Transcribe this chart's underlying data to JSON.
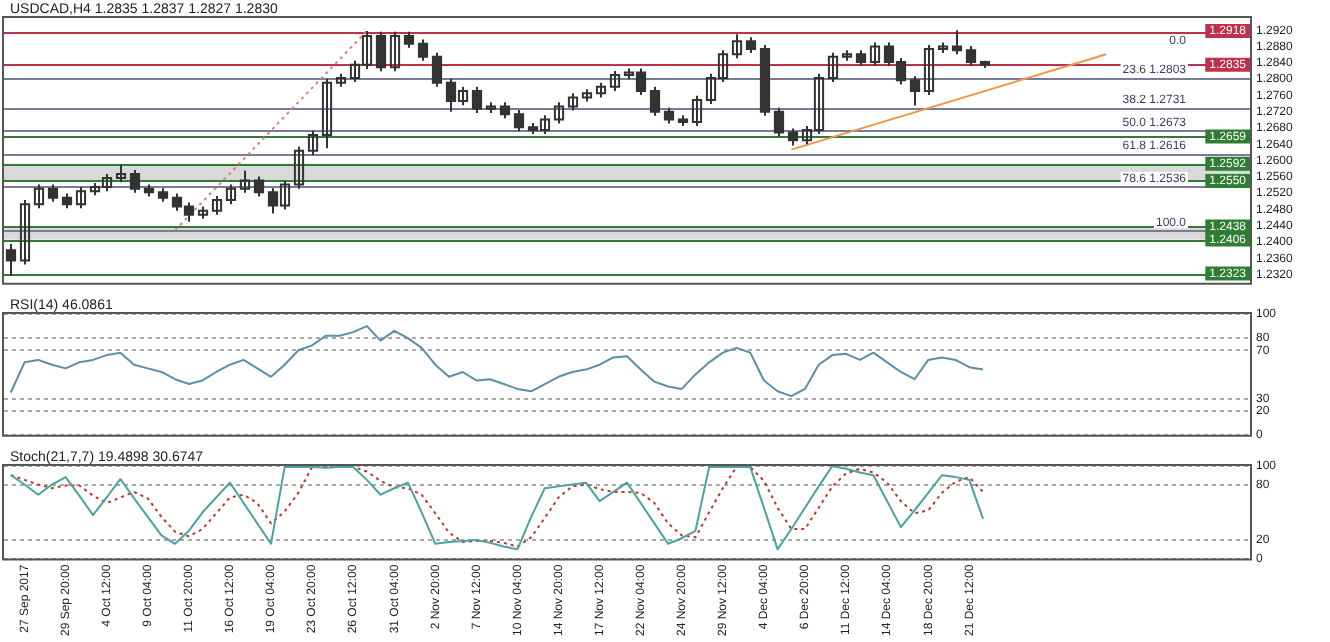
{
  "chart_data": [
    {
      "type": "candlestick",
      "title": "USDCAD,H4 1.2835 1.2837 1.2827 1.2830",
      "color": "#333333",
      "tick_labels": "y",
      "categories": [
        null,
        null,
        null,
        null,
        null,
        null,
        null,
        null,
        null,
        null,
        null,
        null,
        null,
        null,
        null,
        null,
        null,
        null,
        null,
        null,
        null,
        null,
        null,
        null,
        null,
        null,
        null,
        null,
        null,
        null,
        null,
        null,
        null,
        null,
        null,
        null,
        null,
        null,
        null,
        null,
        null,
        null,
        null,
        null,
        null,
        null,
        null,
        null,
        null,
        null,
        null,
        null,
        null,
        null,
        null,
        null,
        null,
        null,
        null,
        null,
        null,
        null,
        null,
        null,
        null,
        null,
        null,
        null,
        null,
        null,
        null,
        null,
        null,
        null,
        null,
        null,
        null,
        null,
        null,
        null,
        null,
        null,
        null,
        null,
        null,
        null,
        null,
        null,
        null,
        null,
        null
      ],
      "ohlc": [
        [
          1.238,
          1.2395,
          1.2317,
          1.2355
        ],
        [
          1.2355,
          1.2503,
          1.2345,
          1.2493
        ],
        [
          1.2493,
          1.2541,
          1.2483,
          1.2531
        ],
        [
          1.2531,
          1.2541,
          1.2499,
          1.2509
        ],
        [
          1.2509,
          1.2519,
          1.2483,
          1.2493
        ],
        [
          1.2493,
          1.2535,
          1.2483,
          1.2525
        ],
        [
          1.2525,
          1.2545,
          1.2515,
          1.2535
        ],
        [
          1.2535,
          1.2567,
          1.2525,
          1.2557
        ],
        [
          1.2557,
          1.259,
          1.2547,
          1.2567
        ],
        [
          1.2567,
          1.2577,
          1.2521,
          1.2531
        ],
        [
          1.2531,
          1.2541,
          1.2512,
          1.2522
        ],
        [
          1.2522,
          1.2532,
          1.2499,
          1.2509
        ],
        [
          1.2509,
          1.2519,
          1.2477,
          1.2487
        ],
        [
          1.2487,
          1.2497,
          1.245,
          1.2467
        ],
        [
          1.2467,
          1.2487,
          1.2457,
          1.2477
        ],
        [
          1.2477,
          1.2513,
          1.2467,
          1.2503
        ],
        [
          1.2503,
          1.2541,
          1.2493,
          1.2531
        ],
        [
          1.2531,
          1.2575,
          1.2521,
          1.2551
        ],
        [
          1.2551,
          1.2561,
          1.2512,
          1.2522
        ],
        [
          1.2522,
          1.2532,
          1.247,
          1.249
        ],
        [
          1.249,
          1.2551,
          1.248,
          1.2541
        ],
        [
          1.2541,
          1.2634,
          1.2531,
          1.2624
        ],
        [
          1.2624,
          1.2673,
          1.2614,
          1.2663
        ],
        [
          1.2663,
          1.2801,
          1.263,
          1.2791
        ],
        [
          1.2791,
          1.2813,
          1.2781,
          1.2803
        ],
        [
          1.2803,
          1.2845,
          1.2793,
          1.2835
        ],
        [
          1.2835,
          1.2918,
          1.2825,
          1.2906
        ],
        [
          1.2906,
          1.2916,
          1.2819,
          1.2829
        ],
        [
          1.2829,
          1.2916,
          1.2819,
          1.2906
        ],
        [
          1.2906,
          1.2916,
          1.2877,
          1.2887
        ],
        [
          1.2887,
          1.2897,
          1.2845,
          1.2855
        ],
        [
          1.2855,
          1.2865,
          1.2781,
          1.2791
        ],
        [
          1.2791,
          1.2801,
          1.272,
          1.2746
        ],
        [
          1.2746,
          1.2781,
          1.2736,
          1.2771
        ],
        [
          1.2771,
          1.2781,
          1.2717,
          1.2727
        ],
        [
          1.2727,
          1.2743,
          1.2717,
          1.2733
        ],
        [
          1.2733,
          1.2743,
          1.2704,
          1.2714
        ],
        [
          1.2714,
          1.2724,
          1.2672,
          1.2682
        ],
        [
          1.2682,
          1.2692,
          1.2665,
          1.2675
        ],
        [
          1.2675,
          1.2711,
          1.2665,
          1.2701
        ],
        [
          1.2701,
          1.2743,
          1.2691,
          1.2733
        ],
        [
          1.2733,
          1.2765,
          1.2723,
          1.2755
        ],
        [
          1.2755,
          1.2775,
          1.2745,
          1.2765
        ],
        [
          1.2765,
          1.2791,
          1.2755,
          1.2781
        ],
        [
          1.2781,
          1.282,
          1.2771,
          1.281
        ],
        [
          1.281,
          1.2826,
          1.28,
          1.2816
        ],
        [
          1.2816,
          1.2826,
          1.2761,
          1.2771
        ],
        [
          1.2771,
          1.2781,
          1.271,
          1.272
        ],
        [
          1.272,
          1.273,
          1.2691,
          1.2701
        ],
        [
          1.2701,
          1.2711,
          1.2685,
          1.2695
        ],
        [
          1.2695,
          1.2759,
          1.2685,
          1.2749
        ],
        [
          1.2749,
          1.2813,
          1.2739,
          1.2803
        ],
        [
          1.2803,
          1.2871,
          1.2793,
          1.2861
        ],
        [
          1.2861,
          1.291,
          1.2851,
          1.2893
        ],
        [
          1.2893,
          1.2903,
          1.2864,
          1.2874
        ],
        [
          1.2874,
          1.2884,
          1.271,
          1.272
        ],
        [
          1.272,
          1.273,
          1.2659,
          1.2669
        ],
        [
          1.2669,
          1.2679,
          1.2637,
          1.265
        ],
        [
          1.265,
          1.2685,
          1.264,
          1.2675
        ],
        [
          1.2675,
          1.2813,
          1.2665,
          1.2803
        ],
        [
          1.2803,
          1.2865,
          1.2793,
          1.2855
        ],
        [
          1.2855,
          1.2871,
          1.2845,
          1.2861
        ],
        [
          1.2861,
          1.2871,
          1.2832,
          1.2842
        ],
        [
          1.2842,
          1.289,
          1.2832,
          1.288
        ],
        [
          1.288,
          1.289,
          1.2832,
          1.2842
        ],
        [
          1.2842,
          1.2852,
          1.2787,
          1.2797
        ],
        [
          1.2797,
          1.2807,
          1.2735,
          1.2771
        ],
        [
          1.2771,
          1.2884,
          1.2761,
          1.2874
        ],
        [
          1.2874,
          1.289,
          1.2864,
          1.288
        ],
        [
          1.288,
          1.292,
          1.2861,
          1.2871
        ],
        [
          1.2871,
          1.2881,
          1.2832,
          1.2842
        ],
        [
          1.2842,
          1.2845,
          1.2827,
          1.2835
        ],
        null,
        null,
        null,
        null,
        null,
        null,
        null,
        null,
        null,
        null,
        null,
        null,
        null,
        null,
        null,
        null,
        null,
        null,
        null
      ],
      "series": [
        {
          "type": "line",
          "color": "#f0954a",
          "values": [
            null,
            null,
            null,
            null,
            null,
            null,
            null,
            null,
            null,
            null,
            null,
            null,
            null,
            null,
            null,
            null,
            null,
            null,
            null,
            null,
            null,
            null,
            null,
            null,
            null,
            null,
            null,
            null,
            null,
            null,
            null,
            null,
            null,
            null,
            null,
            null,
            null,
            null,
            null,
            null,
            null,
            null,
            null,
            null,
            null,
            null,
            null,
            null,
            null,
            null,
            null,
            null,
            null,
            null,
            null,
            null,
            null,
            1.2627,
            null,
            null,
            null,
            null,
            null,
            null,
            null,
            null,
            null,
            null,
            null,
            null,
            null,
            null,
            null,
            null,
            null,
            null,
            null,
            null,
            null,
            null,
            1.2861,
            null,
            null,
            null,
            null,
            null,
            null,
            null,
            null,
            null,
            null
          ]
        },
        {
          "type": "line",
          "color": "#d98080",
          "line_style": "dotted",
          "values": [
            null,
            null,
            null,
            null,
            null,
            null,
            null,
            null,
            null,
            null,
            null,
            null,
            1.2429,
            null,
            null,
            null,
            null,
            null,
            null,
            null,
            null,
            null,
            null,
            null,
            null,
            null,
            1.2918,
            null,
            null,
            null,
            null,
            null,
            null,
            null,
            null,
            null,
            null,
            null,
            null,
            null,
            null,
            null,
            null,
            null,
            null,
            null,
            null,
            null,
            null,
            null,
            null,
            null,
            null,
            null,
            null,
            null,
            null,
            null,
            null,
            null,
            null,
            null,
            null,
            null,
            null,
            null,
            null,
            null,
            null,
            null,
            null,
            null,
            null,
            null,
            null,
            null,
            null,
            null,
            null,
            null,
            null,
            null,
            null,
            null,
            null,
            null,
            null,
            null,
            null,
            null,
            null
          ]
        }
      ],
      "ylim": [
        1.23,
        1.295
      ],
      "yticks": [
        {
          "value": 1.232,
          "label": "1.2320"
        },
        {
          "value": 1.236,
          "label": "1.2360"
        },
        {
          "value": 1.24,
          "label": "1.2400"
        },
        {
          "value": 1.244,
          "label": "1.2440"
        },
        {
          "value": 1.248,
          "label": "1.2480"
        },
        {
          "value": 1.252,
          "label": "1.2520"
        },
        {
          "value": 1.256,
          "label": "1.2560"
        },
        {
          "value": 1.26,
          "label": "1.2600"
        },
        {
          "value": 1.264,
          "label": "1.2640"
        },
        {
          "value": 1.268,
          "label": "1.2680"
        },
        {
          "value": 1.272,
          "label": "1.2720"
        },
        {
          "value": 1.276,
          "label": "1.2760"
        },
        {
          "value": 1.28,
          "label": "1.2800"
        },
        {
          "value": 1.284,
          "label": "1.2840"
        },
        {
          "value": 1.288,
          "label": "1.2880"
        },
        {
          "value": 1.292,
          "label": "1.2920"
        }
      ],
      "bands": [
        {
          "axis": "y",
          "from": 1.255,
          "to": 1.2592,
          "color": "#d9d9d9"
        },
        {
          "axis": "y",
          "from": 1.2406,
          "to": 1.2438,
          "color": "#d9d9d9"
        }
      ],
      "ref_lines": [
        {
          "axis": "y",
          "value": 1.2918,
          "label": "1.2918",
          "color": "#c0304a"
        },
        {
          "axis": "y",
          "value": 1.2835,
          "label": "1.2835",
          "color": "#c0304a"
        },
        {
          "axis": "y",
          "value": 1.2659,
          "label": "1.2659",
          "color": "#2e7d32"
        },
        {
          "axis": "y",
          "value": 1.2592,
          "label": "1.2592",
          "color": "#2e7d32"
        },
        {
          "axis": "y",
          "value": 1.255,
          "label": "1.2550",
          "color": "#2e7d32"
        },
        {
          "axis": "y",
          "value": 1.2438,
          "label": "1.2438",
          "color": "#2e7d32"
        },
        {
          "axis": "y",
          "value": 1.2406,
          "label": "1.2406",
          "color": "#2e7d32"
        },
        {
          "axis": "y",
          "value": 1.2323,
          "label": "1.2323",
          "color": "#2e7d32"
        },
        {
          "axis": "y",
          "value": 1.2803,
          "color": "#7a7a9a"
        },
        {
          "axis": "y",
          "value": 1.2731,
          "color": "#7a7a9a"
        },
        {
          "axis": "y",
          "value": 1.2673,
          "color": "#7a7a9a"
        },
        {
          "axis": "y",
          "value": 1.2616,
          "color": "#7a7a9a"
        },
        {
          "axis": "y",
          "value": 1.2536,
          "color": "#7a7a9a"
        },
        {
          "axis": "y",
          "value": 1.2429,
          "color": "#7a7a9a"
        }
      ],
      "annotations": [
        {
          "text": "0.0",
          "y": 1.2918
        },
        {
          "text": "23.6 1.2803",
          "y": 1.2803
        },
        {
          "text": "38.2 1.2731",
          "y": 1.2731
        },
        {
          "text": "50.0 1.2673",
          "y": 1.2673
        },
        {
          "text": "61.8 1.2616",
          "y": 1.2616
        },
        {
          "text": "78.6 1.2536",
          "y": 1.2536
        },
        {
          "text": "100.0",
          "y": 1.2429
        }
      ]
    },
    {
      "type": "line",
      "title": "RSI(14) 46.0861",
      "tick_labels": "y",
      "grid": "y",
      "categories": [
        null,
        null,
        null,
        null,
        null,
        null,
        null,
        null,
        null,
        null,
        null,
        null,
        null,
        null,
        null,
        null,
        null,
        null,
        null,
        null,
        null,
        null,
        null,
        null,
        null,
        null,
        null,
        null,
        null,
        null,
        null,
        null,
        null,
        null,
        null,
        null,
        null,
        null,
        null,
        null,
        null,
        null,
        null,
        null,
        null,
        null,
        null,
        null,
        null,
        null,
        null,
        null,
        null,
        null,
        null,
        null,
        null,
        null,
        null,
        null,
        null,
        null,
        null,
        null,
        null,
        null,
        null,
        null,
        null,
        null,
        null,
        null,
        null,
        null,
        null,
        null,
        null,
        null,
        null,
        null,
        null,
        null,
        null,
        null,
        null,
        null,
        null,
        null,
        null,
        null,
        null
      ],
      "series": [
        {
          "color": "#5b8fa8",
          "values": [
            35,
            60,
            62,
            58,
            55,
            60,
            62,
            66,
            68,
            58,
            55,
            52,
            46,
            42,
            45,
            52,
            58,
            62,
            55,
            48,
            58,
            70,
            74,
            82,
            82,
            85,
            90,
            78,
            86,
            80,
            72,
            58,
            48,
            52,
            45,
            46,
            42,
            38,
            36,
            42,
            48,
            52,
            54,
            58,
            64,
            65,
            54,
            44,
            40,
            38,
            50,
            60,
            68,
            72,
            68,
            45,
            36,
            32,
            38,
            58,
            66,
            67,
            62,
            68,
            60,
            52,
            46,
            62,
            64,
            62,
            56,
            54,
            null,
            null,
            null,
            null,
            null,
            null,
            null,
            null,
            null,
            null,
            null,
            null,
            null,
            null,
            null,
            null,
            null,
            null,
            null
          ]
        }
      ],
      "ylim": [
        0,
        100
      ],
      "yticks": [
        0,
        20,
        30,
        70,
        80,
        100
      ]
    },
    {
      "type": "line",
      "title": "Stoch(21,7,7) 19.4898 30.6747",
      "grid": "y",
      "categories": [
        null,
        "27 Sep 2017",
        null,
        null,
        "29 Sep 20:00",
        null,
        null,
        "4 Oct 12:00",
        null,
        null,
        "9 Oct 04:00",
        null,
        null,
        "11 Oct 20:00",
        null,
        null,
        "16 Oct 12:00",
        null,
        null,
        "19 Oct 04:00",
        null,
        null,
        "23 Oct 20:00",
        null,
        null,
        "26 Oct 12:00",
        null,
        null,
        "31 Oct 04:00",
        null,
        null,
        "2 Nov 20:00",
        null,
        null,
        "7 Nov 12:00",
        null,
        null,
        "10 Nov 04:00",
        null,
        null,
        "14 Nov 20:00",
        null,
        null,
        "17 Nov 12:00",
        null,
        null,
        "22 Nov 04:00",
        null,
        null,
        "24 Nov 20:00",
        null,
        null,
        "29 Nov 12:00",
        null,
        null,
        "4 Dec 04:00",
        null,
        null,
        "6 Dec 20:00",
        null,
        null,
        "11 Dec 12:00",
        null,
        null,
        "14 Dec 04:00",
        null,
        null,
        "18 Dec 20:00",
        null,
        null,
        "21 Dec 12:00",
        null,
        null,
        null,
        null,
        null,
        null,
        null,
        null,
        null,
        null,
        null,
        null,
        null,
        null,
        null,
        null,
        null,
        null,
        null,
        null
      ],
      "series": [
        {
          "color": "#4aa3a0",
          "values": [
            90,
            80,
            69,
            80,
            88,
            68,
            47,
            66,
            86,
            65,
            45,
            25,
            16,
            30,
            50,
            66,
            82,
            60,
            38,
            16,
            99,
            99,
            99,
            98,
            99,
            99,
            85,
            69,
            76,
            82,
            50,
            16,
            18,
            19,
            20,
            17,
            13,
            10,
            45,
            76,
            78,
            80,
            82,
            62,
            72,
            82,
            60,
            38,
            16,
            22,
            30,
            99,
            99,
            99,
            99,
            55,
            10,
            32,
            55,
            78,
            100,
            97,
            93,
            90,
            62,
            34,
            52,
            71,
            90,
            88,
            85,
            43,
            null,
            null,
            null,
            null,
            null,
            null,
            null,
            null,
            null,
            null,
            null,
            null,
            null,
            null,
            null,
            null,
            null,
            null,
            null
          ]
        },
        {
          "color": "#c0392b",
          "line_style": "dotted",
          "values": [
            90,
            85,
            80,
            76,
            79,
            79,
            68,
            60,
            66,
            72,
            65,
            45,
            29,
            24,
            32,
            49,
            66,
            69,
            60,
            38,
            51,
            71,
            99,
            99,
            99,
            99,
            94,
            84,
            77,
            76,
            69,
            49,
            28,
            18,
            19,
            19,
            17,
            13,
            23,
            44,
            66,
            78,
            80,
            75,
            72,
            72,
            71,
            60,
            38,
            25,
            23,
            50,
            76,
            99,
            99,
            84,
            55,
            32,
            32,
            55,
            78,
            92,
            97,
            93,
            82,
            62,
            49,
            52,
            71,
            83,
            88,
            72,
            null,
            null,
            null,
            null,
            null,
            null,
            null,
            null,
            null,
            null,
            null,
            null,
            null,
            null,
            null,
            null,
            null,
            null,
            null
          ]
        }
      ],
      "ylim": [
        0,
        100
      ],
      "yticks": [
        0,
        20,
        80,
        100
      ]
    }
  ]
}
